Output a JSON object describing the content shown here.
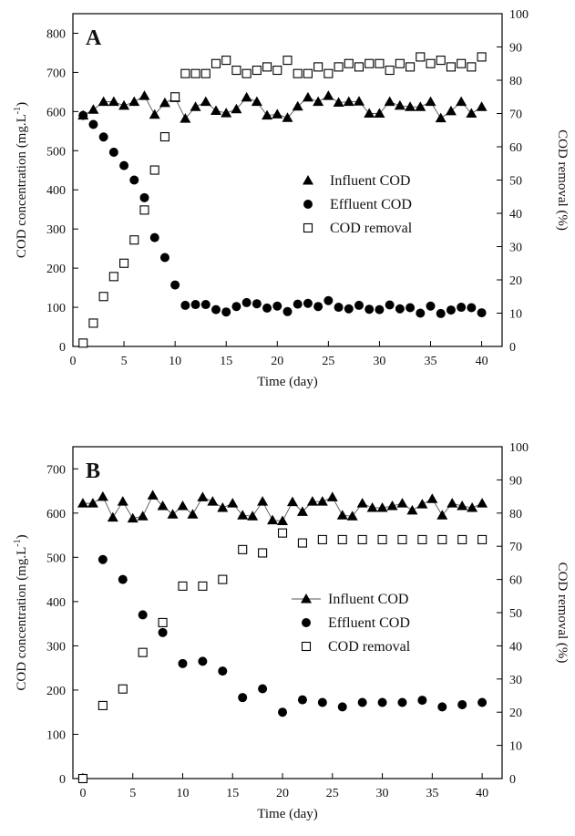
{
  "chart_data": [
    {
      "type": "scatter",
      "panel_label": "A",
      "xlabel": "Time (day)",
      "ylabel": "COD concentration (mg.L",
      "ylabel_sup": "-1",
      "ylabel_close": ")",
      "y2label": "COD removal (%)",
      "xlim": [
        0,
        42
      ],
      "ylim": [
        0,
        850
      ],
      "y2lim": [
        0,
        100
      ],
      "xticks": [
        0,
        5,
        10,
        15,
        20,
        25,
        30,
        35,
        40
      ],
      "yticks": [
        0,
        100,
        200,
        300,
        400,
        500,
        600,
        700,
        800
      ],
      "y2ticks": [
        0,
        10,
        20,
        30,
        40,
        50,
        60,
        70,
        80,
        90,
        100
      ],
      "legend_position": "center-right",
      "series": [
        {
          "name": "Influent COD",
          "marker": "triangle",
          "axis": "left",
          "line": true,
          "x": [
            1,
            2,
            3,
            4,
            5,
            6,
            7,
            8,
            9,
            10,
            11,
            12,
            13,
            14,
            15,
            16,
            17,
            18,
            19,
            20,
            21,
            22,
            23,
            24,
            25,
            26,
            27,
            28,
            29,
            30,
            31,
            32,
            33,
            34,
            35,
            36,
            37,
            38,
            39,
            40
          ],
          "y": [
            590,
            605,
            625,
            625,
            615,
            625,
            640,
            592,
            622,
            635,
            582,
            612,
            625,
            602,
            596,
            606,
            636,
            625,
            590,
            593,
            584,
            613,
            636,
            625,
            640,
            623,
            625,
            626,
            595,
            595,
            625,
            615,
            612,
            612,
            625,
            583,
            601,
            625,
            595,
            612
          ]
        },
        {
          "name": "Effluent COD",
          "marker": "circle",
          "axis": "left",
          "line": false,
          "x": [
            1,
            2,
            3,
            4,
            5,
            6,
            7,
            8,
            9,
            10,
            11,
            12,
            13,
            14,
            15,
            16,
            17,
            18,
            19,
            20,
            21,
            22,
            23,
            24,
            25,
            26,
            27,
            28,
            29,
            30,
            31,
            32,
            33,
            34,
            35,
            36,
            37,
            38,
            39,
            40
          ],
          "y": [
            590,
            567,
            535,
            496,
            462,
            425,
            380,
            278,
            227,
            157,
            105,
            107,
            107,
            94,
            88,
            102,
            112,
            109,
            98,
            103,
            89,
            108,
            110,
            102,
            117,
            100,
            96,
            105,
            95,
            94,
            106,
            96,
            99,
            85,
            103,
            84,
            93,
            100,
            99,
            86
          ]
        },
        {
          "name": "COD removal",
          "marker": "square-open",
          "axis": "right",
          "line": false,
          "x": [
            1,
            2,
            3,
            4,
            5,
            6,
            7,
            8,
            9,
            10,
            11,
            12,
            13,
            14,
            15,
            16,
            17,
            18,
            19,
            20,
            21,
            22,
            23,
            24,
            25,
            26,
            27,
            28,
            29,
            30,
            31,
            32,
            33,
            34,
            35,
            36,
            37,
            38,
            39,
            40
          ],
          "y": [
            1,
            7,
            15,
            21,
            25,
            32,
            41,
            53,
            63,
            75,
            82,
            82,
            82,
            85,
            86,
            83,
            82,
            83,
            84,
            83,
            86,
            82,
            82,
            84,
            82,
            84,
            85,
            84,
            85,
            85,
            83,
            85,
            84,
            87,
            85,
            86,
            84,
            85,
            84,
            87
          ]
        }
      ]
    },
    {
      "type": "scatter",
      "panel_label": "B",
      "xlabel": "Time (day)",
      "ylabel": "COD concentration (mg.L",
      "ylabel_sup": "-1",
      "ylabel_close": ")",
      "y2label": "COD removal (%)",
      "xlim": [
        -1,
        42
      ],
      "ylim": [
        0,
        750
      ],
      "y2lim": [
        0,
        100
      ],
      "xticks": [
        0,
        5,
        10,
        15,
        20,
        25,
        30,
        35,
        40
      ],
      "yticks": [
        0,
        100,
        200,
        300,
        400,
        500,
        600,
        700
      ],
      "y2ticks": [
        0,
        10,
        20,
        30,
        40,
        50,
        60,
        70,
        80,
        90,
        100
      ],
      "legend_position": "center-right",
      "series": [
        {
          "name": "Influent COD",
          "marker": "triangle",
          "axis": "left",
          "line": true,
          "x": [
            0,
            1,
            2,
            3,
            4,
            5,
            6,
            7,
            8,
            9,
            10,
            11,
            12,
            13,
            14,
            15,
            16,
            17,
            18,
            19,
            20,
            21,
            22,
            23,
            24,
            25,
            26,
            27,
            28,
            29,
            30,
            31,
            32,
            33,
            34,
            35,
            36,
            37,
            38,
            39,
            40
          ],
          "y": [
            622,
            622,
            637,
            590,
            626,
            588,
            593,
            640,
            616,
            597,
            616,
            597,
            636,
            626,
            612,
            622,
            595,
            593,
            626,
            584,
            582,
            625,
            603,
            626,
            626,
            636,
            595,
            593,
            622,
            612,
            612,
            616,
            622,
            606,
            620,
            632,
            595,
            622,
            616,
            612,
            622
          ]
        },
        {
          "name": "Effluent COD",
          "marker": "circle",
          "axis": "left",
          "line": false,
          "x": [
            2,
            4,
            6,
            8,
            10,
            12,
            14,
            16,
            18,
            20,
            22,
            24,
            26,
            28,
            30,
            32,
            34,
            36,
            38,
            40
          ],
          "y": [
            495,
            450,
            370,
            330,
            260,
            265,
            243,
            183,
            203,
            150,
            178,
            172,
            162,
            172,
            172,
            172,
            177,
            162,
            167,
            172
          ]
        },
        {
          "name": "COD removal",
          "marker": "square-open",
          "axis": "right",
          "line": false,
          "x": [
            0,
            2,
            4,
            6,
            8,
            10,
            12,
            14,
            16,
            18,
            20,
            22,
            24,
            26,
            28,
            30,
            32,
            34,
            36,
            38,
            40
          ],
          "y": [
            0,
            22,
            27,
            38,
            47,
            58,
            58,
            60,
            69,
            68,
            74,
            71,
            72,
            72,
            72,
            72,
            72,
            72,
            72,
            72,
            72
          ]
        }
      ]
    }
  ]
}
